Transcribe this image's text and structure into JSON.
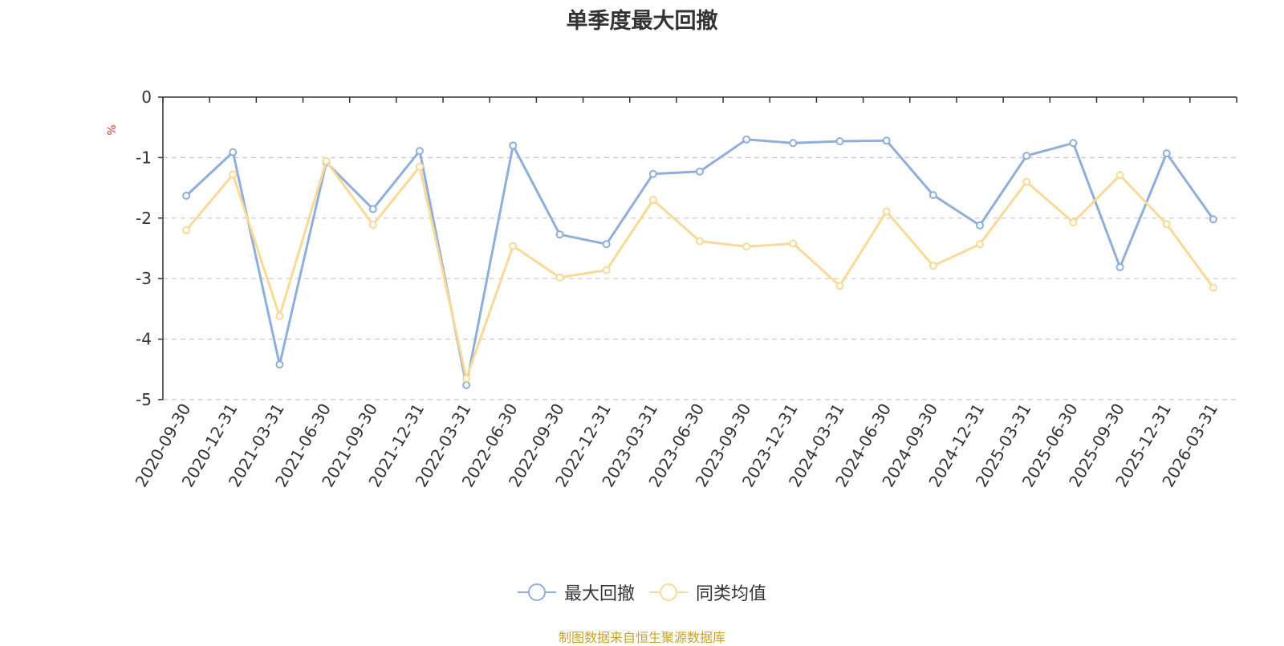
{
  "title": "单季度最大回撤",
  "source_note": "制图数据来自恒生聚源数据库",
  "colors": {
    "series_1": "#8eaedb",
    "series_2": "#fad996",
    "ylabel": "#e03030"
  },
  "chart_data": {
    "type": "line",
    "title": "单季度最大回撤",
    "ylabel": "%",
    "ylim": [
      -5,
      0
    ],
    "yticks": [
      0,
      -1,
      -2,
      -3,
      -4,
      -5
    ],
    "grid": true,
    "legend": "bottom-center",
    "x": [
      "2020-09-30",
      "2020-12-31",
      "2021-03-31",
      "2021-06-30",
      "2021-09-30",
      "2021-12-31",
      "2022-03-31",
      "2022-06-30",
      "2022-09-30",
      "2022-12-31",
      "2023-03-31",
      "2023-06-30",
      "2023-09-30",
      "2023-12-31",
      "2024-03-31",
      "2024-06-30",
      "2024-09-30",
      "2024-12-31",
      "2025-03-31",
      "2025-06-30",
      "2025-09-30",
      "2025-12-31",
      "2026-03-31"
    ],
    "series": [
      {
        "name": "最大回撤",
        "values": [
          -1.63,
          -0.91,
          -4.42,
          -1.08,
          -1.85,
          -0.89,
          -4.76,
          -0.8,
          -2.27,
          -2.43,
          -1.27,
          -1.23,
          -0.7,
          -0.76,
          -0.73,
          -0.72,
          -1.62,
          -2.12,
          -0.97,
          -0.76,
          -2.81,
          -0.93,
          -2.02
        ]
      },
      {
        "name": "同类均值",
        "values": [
          -2.2,
          -1.28,
          -3.62,
          -1.06,
          -2.11,
          -1.15,
          -4.65,
          -2.46,
          -2.98,
          -2.86,
          -1.7,
          -2.38,
          -2.47,
          -2.42,
          -3.12,
          -1.89,
          -2.79,
          -2.43,
          -1.4,
          -2.07,
          -1.29,
          -2.1,
          -3.15
        ]
      }
    ]
  }
}
